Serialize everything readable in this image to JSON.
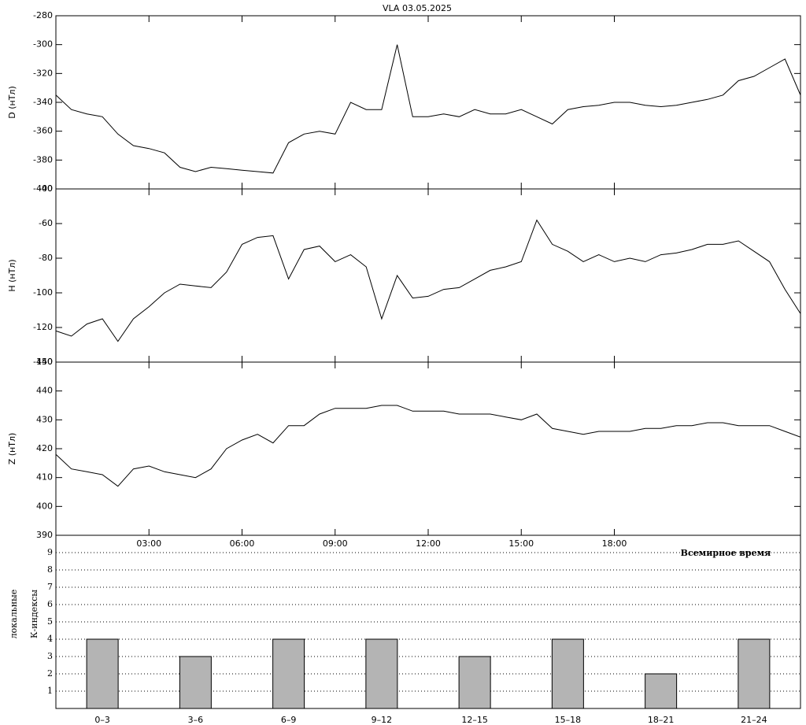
{
  "chart_data": [
    {
      "type": "line",
      "title": "VLA   03.05.2025",
      "ylabel": "D (нТл)",
      "x": [
        0,
        0.5,
        1,
        1.5,
        2,
        2.5,
        3,
        3.5,
        4,
        4.5,
        5,
        5.5,
        6,
        6.5,
        7,
        7.5,
        8,
        8.5,
        9,
        9.5,
        10,
        10.5,
        11,
        11.5,
        12,
        12.5,
        13,
        13.5,
        14,
        14.5,
        15,
        15.5,
        16,
        16.5,
        17,
        17.5,
        18,
        18.5,
        19,
        19.5,
        20,
        20.5,
        21,
        21.5,
        22,
        22.5,
        23,
        23.5,
        24
      ],
      "xlim": [
        0,
        24
      ],
      "series": [
        {
          "color": "#000000",
          "values": [
            -335,
            -345,
            -348,
            -350,
            -362,
            -370,
            -372,
            -375,
            -385,
            -388,
            -385,
            -386,
            -387,
            -388,
            -389,
            -368,
            -362,
            -360,
            -362,
            -340,
            -345,
            -345,
            -300,
            -350,
            -350,
            -348,
            -350,
            -345,
            -348,
            -348,
            -345,
            -350,
            -355,
            -345,
            -343,
            -342,
            -340,
            -340,
            -342,
            -343,
            -342,
            -340,
            -338,
            -335,
            -325,
            -322,
            -316,
            -310,
            -335
          ]
        }
      ],
      "ylim": [
        -400,
        -280
      ],
      "yticks": [
        -400,
        -380,
        -360,
        -340,
        -320,
        -300,
        -280
      ]
    },
    {
      "type": "line",
      "ylabel": "H (нТл)",
      "x": [
        0,
        0.5,
        1,
        1.5,
        2,
        2.5,
        3,
        3.5,
        4,
        4.5,
        5,
        5.5,
        6,
        6.5,
        7,
        7.5,
        8,
        8.5,
        9,
        9.5,
        10,
        10.5,
        11,
        11.5,
        12,
        12.5,
        13,
        13.5,
        14,
        14.5,
        15,
        15.5,
        16,
        16.5,
        17,
        17.5,
        18,
        18.5,
        19,
        19.5,
        20,
        20.5,
        21,
        21.5,
        22,
        22.5,
        23,
        23.5,
        24
      ],
      "xlim": [
        0,
        24
      ],
      "series": [
        {
          "color": "#000000",
          "values": [
            -122,
            -125,
            -118,
            -115,
            -128,
            -115,
            -108,
            -100,
            -95,
            -96,
            -97,
            -88,
            -72,
            -68,
            -67,
            -92,
            -75,
            -73,
            -82,
            -78,
            -85,
            -115,
            -90,
            -103,
            -102,
            -98,
            -97,
            -92,
            -87,
            -85,
            -82,
            -58,
            -72,
            -76,
            -82,
            -78,
            -82,
            -80,
            -82,
            -78,
            -77,
            -75,
            -72,
            -72,
            -70,
            -76,
            -82,
            -98,
            -112
          ]
        }
      ],
      "ylim": [
        -140,
        -40
      ],
      "yticks": [
        -140,
        -120,
        -100,
        -80,
        -60,
        -40
      ]
    },
    {
      "type": "line",
      "ylabel": "Z (нТл)",
      "x": [
        0,
        0.5,
        1,
        1.5,
        2,
        2.5,
        3,
        3.5,
        4,
        4.5,
        5,
        5.5,
        6,
        6.5,
        7,
        7.5,
        8,
        8.5,
        9,
        9.5,
        10,
        10.5,
        11,
        11.5,
        12,
        12.5,
        13,
        13.5,
        14,
        14.5,
        15,
        15.5,
        16,
        16.5,
        17,
        17.5,
        18,
        18.5,
        19,
        19.5,
        20,
        20.5,
        21,
        21.5,
        22,
        22.5,
        23,
        23.5,
        24
      ],
      "xlim": [
        0,
        24
      ],
      "xticks": [
        {
          "value": 3,
          "label": "03:00"
        },
        {
          "value": 6,
          "label": "06:00"
        },
        {
          "value": 9,
          "label": "09:00"
        },
        {
          "value": 12,
          "label": "12:00"
        },
        {
          "value": 15,
          "label": "15:00"
        },
        {
          "value": 18,
          "label": "18:00"
        }
      ],
      "xlabel": "Всемирное время",
      "series": [
        {
          "color": "#000000",
          "values": [
            418,
            413,
            412,
            411,
            407,
            413,
            414,
            412,
            411,
            410,
            413,
            420,
            423,
            425,
            422,
            428,
            428,
            432,
            434,
            434,
            434,
            435,
            435,
            433,
            433,
            433,
            432,
            432,
            432,
            431,
            430,
            432,
            427,
            426,
            425,
            426,
            426,
            426,
            427,
            427,
            428,
            428,
            429,
            429,
            428,
            428,
            428,
            426,
            424
          ]
        }
      ],
      "ylim": [
        390,
        450
      ],
      "yticks": [
        390,
        400,
        410,
        420,
        430,
        440,
        450
      ]
    },
    {
      "type": "bar",
      "ylabel": [
        "локальные",
        "К-индексы"
      ],
      "categories": [
        "0–3",
        "3–6",
        "6–9",
        "9–12",
        "12–15",
        "15–18",
        "18–21",
        "21–24"
      ],
      "values": [
        4,
        3,
        4,
        4,
        3,
        4,
        2,
        4
      ],
      "color": "#b4b4b4",
      "ylim": [
        0,
        10
      ],
      "yticks": [
        1,
        2,
        3,
        4,
        5,
        6,
        7,
        8,
        9
      ],
      "grid": true
    }
  ]
}
